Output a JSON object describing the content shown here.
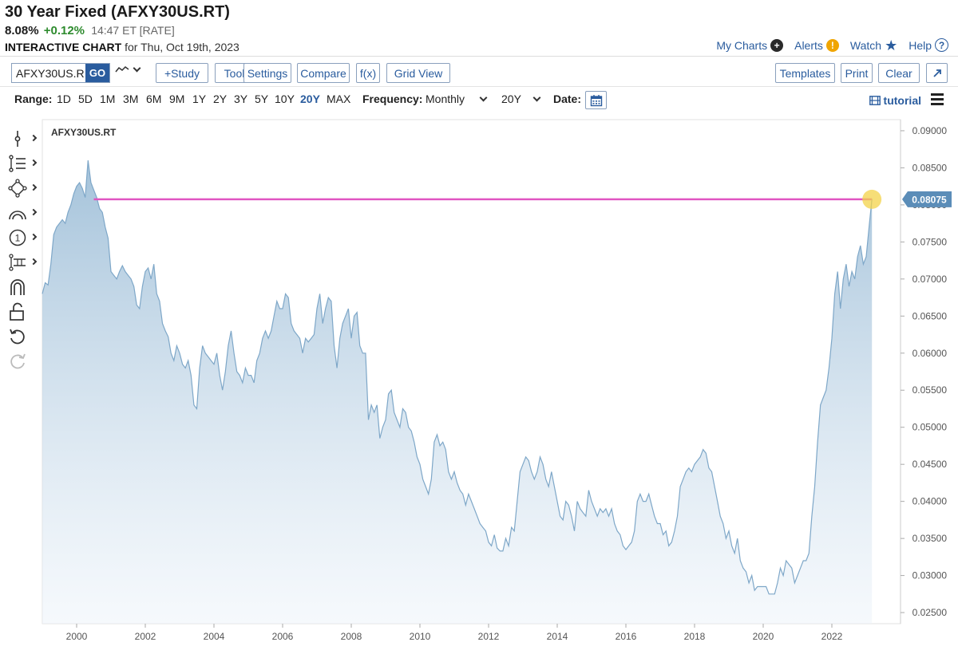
{
  "header": {
    "title": "30 Year Fixed (AFXY30US.RT)",
    "price": "8.08%",
    "change": "+0.12%",
    "meta": "14:47 ET [RATE]",
    "interactive_label": "INTERACTIVE CHART",
    "for_date": "for Thu, Oct 19th, 2023"
  },
  "top_links": {
    "my_charts": "My Charts",
    "alerts": "Alerts",
    "watch": "Watch",
    "help": "Help"
  },
  "toolbar": {
    "symbol_value": "AFXY30US.R",
    "go": "GO",
    "study": "+Study",
    "tools": "Tools",
    "settings": "Settings",
    "compare": "Compare",
    "fx": "f(x)",
    "grid_view": "Grid View",
    "templates": "Templates",
    "print": "Print",
    "clear": "Clear",
    "expand_icon": "expand-icon"
  },
  "range_bar": {
    "range_label": "Range:",
    "ranges": [
      "1D",
      "5D",
      "1M",
      "3M",
      "6M",
      "9M",
      "1Y",
      "2Y",
      "3Y",
      "5Y",
      "10Y",
      "20Y",
      "MAX"
    ],
    "active_range": "20Y",
    "frequency_label": "Frequency:",
    "frequency_value": "Monthly",
    "period_value": "20Y",
    "date_label": "Date:",
    "tutorial": "tutorial"
  },
  "colors": {
    "accent": "#2a5c9e",
    "area_line": "#7ea7c8",
    "area_fill_top": "#9fbfd8",
    "hline": "#e055c2",
    "price_tag": "#5b8db8",
    "marker": "#f3d34a",
    "change_positive": "#2e8b2e"
  },
  "chart_data": {
    "type": "area",
    "series_label": "AFXY30US.RT",
    "frequency": "monthly",
    "x_start": 1999.0,
    "x_step": 0.0833333,
    "xlim": [
      1999.0,
      2024.0
    ],
    "ylim": [
      0.0235,
      0.0915
    ],
    "x_ticks": [
      2000,
      2002,
      2004,
      2006,
      2008,
      2010,
      2012,
      2014,
      2016,
      2018,
      2020,
      2022
    ],
    "y_ticks": [
      0.025,
      0.03,
      0.035,
      0.04,
      0.045,
      0.05,
      0.055,
      0.06,
      0.065,
      0.07,
      0.075,
      0.08,
      0.085,
      0.09
    ],
    "y_tick_labels": [
      "0.02500",
      "0.03000",
      "0.03500",
      "0.04000",
      "0.04500",
      "0.05000",
      "0.05500",
      "0.06000",
      "0.06500",
      "0.07000",
      "0.07500",
      "0.08000",
      "0.08500",
      "0.09000"
    ],
    "x_tick_labels": [
      "2000",
      "2002",
      "2004",
      "2006",
      "2008",
      "2010",
      "2012",
      "2014",
      "2016",
      "2018",
      "2020",
      "2022"
    ],
    "last_value": 0.08075,
    "last_value_label": "0.08075",
    "reference_line": {
      "value": 0.08075,
      "from_x": 2000.5
    },
    "grid": false,
    "values": [
      0.068,
      0.0695,
      0.0692,
      0.072,
      0.076,
      0.077,
      0.0775,
      0.078,
      0.0775,
      0.079,
      0.08,
      0.0815,
      0.0825,
      0.083,
      0.0822,
      0.081,
      0.086,
      0.083,
      0.082,
      0.081,
      0.0795,
      0.079,
      0.077,
      0.0755,
      0.071,
      0.0705,
      0.07,
      0.071,
      0.0718,
      0.071,
      0.0705,
      0.07,
      0.069,
      0.0665,
      0.066,
      0.069,
      0.071,
      0.0715,
      0.07,
      0.072,
      0.068,
      0.067,
      0.064,
      0.063,
      0.0622,
      0.06,
      0.059,
      0.061,
      0.06,
      0.0585,
      0.058,
      0.059,
      0.057,
      0.053,
      0.0525,
      0.058,
      0.061,
      0.06,
      0.0595,
      0.059,
      0.0585,
      0.06,
      0.057,
      0.055,
      0.0575,
      0.061,
      0.063,
      0.06,
      0.0575,
      0.057,
      0.056,
      0.058,
      0.057,
      0.057,
      0.056,
      0.059,
      0.06,
      0.062,
      0.063,
      0.062,
      0.063,
      0.065,
      0.067,
      0.066,
      0.066,
      0.068,
      0.0675,
      0.064,
      0.063,
      0.0625,
      0.062,
      0.06,
      0.062,
      0.0615,
      0.062,
      0.0625,
      0.066,
      0.068,
      0.064,
      0.066,
      0.0675,
      0.067,
      0.061,
      0.058,
      0.062,
      0.064,
      0.065,
      0.066,
      0.062,
      0.065,
      0.0655,
      0.061,
      0.06,
      0.06,
      0.051,
      0.053,
      0.052,
      0.053,
      0.0485,
      0.05,
      0.051,
      0.0545,
      0.055,
      0.052,
      0.051,
      0.05,
      0.0525,
      0.052,
      0.05,
      0.0495,
      0.048,
      0.046,
      0.045,
      0.043,
      0.042,
      0.041,
      0.043,
      0.048,
      0.049,
      0.0475,
      0.048,
      0.047,
      0.044,
      0.043,
      0.044,
      0.0425,
      0.0415,
      0.041,
      0.0395,
      0.041,
      0.04,
      0.039,
      0.038,
      0.037,
      0.0365,
      0.036,
      0.0345,
      0.034,
      0.0355,
      0.0337,
      0.0333,
      0.0333,
      0.035,
      0.034,
      0.0365,
      0.036,
      0.04,
      0.044,
      0.045,
      0.046,
      0.0455,
      0.044,
      0.043,
      0.044,
      0.046,
      0.045,
      0.043,
      0.042,
      0.044,
      0.042,
      0.04,
      0.038,
      0.0375,
      0.04,
      0.0395,
      0.038,
      0.036,
      0.04,
      0.039,
      0.0385,
      0.038,
      0.0415,
      0.04,
      0.039,
      0.038,
      0.039,
      0.0385,
      0.039,
      0.038,
      0.039,
      0.037,
      0.036,
      0.0355,
      0.034,
      0.0335,
      0.034,
      0.0345,
      0.036,
      0.04,
      0.041,
      0.04,
      0.04,
      0.041,
      0.0395,
      0.038,
      0.037,
      0.037,
      0.0355,
      0.036,
      0.034,
      0.0345,
      0.036,
      0.038,
      0.042,
      0.043,
      0.044,
      0.0445,
      0.044,
      0.045,
      0.0455,
      0.046,
      0.047,
      0.0465,
      0.0445,
      0.044,
      0.042,
      0.04,
      0.038,
      0.037,
      0.035,
      0.036,
      0.034,
      0.033,
      0.035,
      0.032,
      0.031,
      0.0305,
      0.029,
      0.03,
      0.028,
      0.0285,
      0.0285,
      0.0285,
      0.0285,
      0.0275,
      0.0275,
      0.0275,
      0.029,
      0.031,
      0.03,
      0.032,
      0.0315,
      0.031,
      0.029,
      0.03,
      0.031,
      0.032,
      0.032,
      0.033,
      0.038,
      0.042,
      0.048,
      0.053,
      0.054,
      0.055,
      0.058,
      0.062,
      0.068,
      0.071,
      0.066,
      0.07,
      0.072,
      0.069,
      0.071,
      0.07,
      0.073,
      0.0745,
      0.072,
      0.073,
      0.077,
      0.0808
    ]
  }
}
